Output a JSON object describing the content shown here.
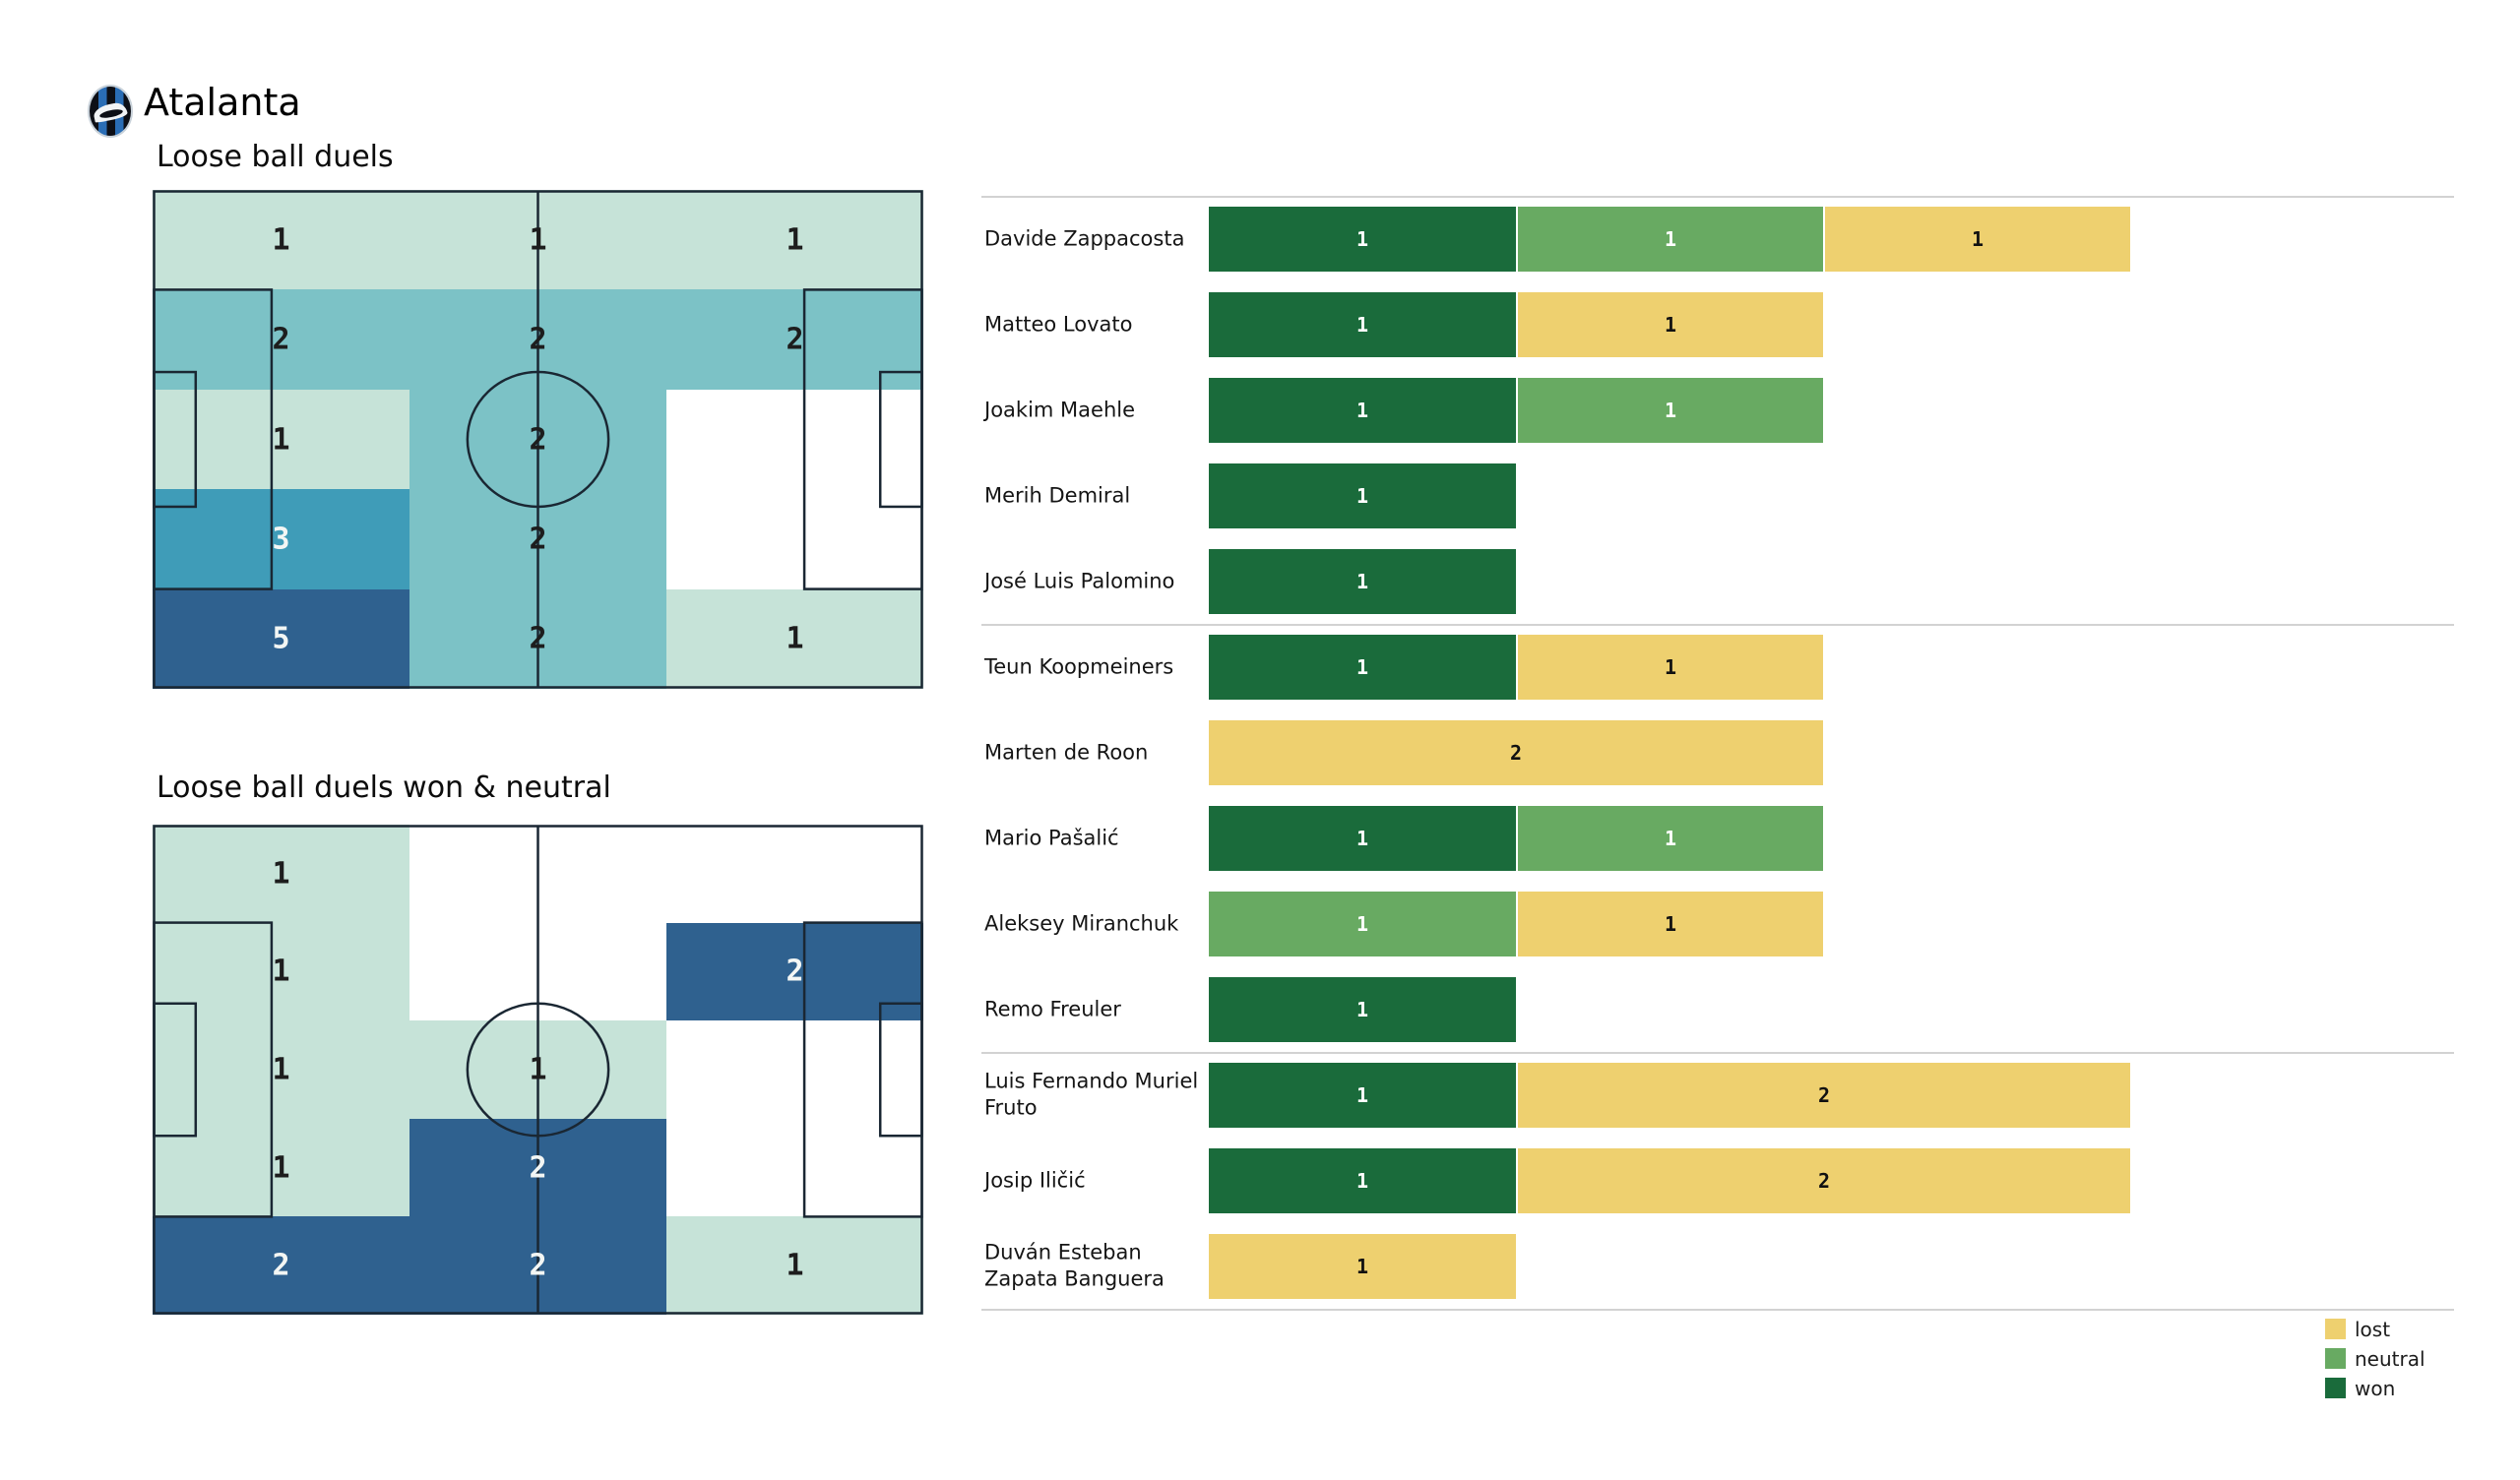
{
  "header": {
    "team": "Atalanta"
  },
  "chart_data": [
    {
      "type": "heatmap",
      "subtype": "football-pitch-zones",
      "title": "Loose ball duels",
      "rows": 5,
      "cols": 3,
      "values": [
        [
          1,
          1,
          1
        ],
        [
          2,
          2,
          2
        ],
        [
          1,
          2,
          0
        ],
        [
          3,
          2,
          0
        ],
        [
          5,
          2,
          1
        ]
      ],
      "color_scale": {
        "0": "#ffffff",
        "1": "#c6e3d8",
        "2": "#7cc2c6",
        "3": "#3f9cb8",
        "5": "#2f618f"
      },
      "white_text_min": 3
    },
    {
      "type": "heatmap",
      "subtype": "football-pitch-zones",
      "title": "Loose ball duels won & neutral",
      "rows": 5,
      "cols": 3,
      "values": [
        [
          1,
          0,
          0
        ],
        [
          1,
          0,
          2
        ],
        [
          1,
          1,
          0
        ],
        [
          1,
          2,
          0
        ],
        [
          2,
          2,
          1
        ]
      ],
      "color_scale": {
        "0": "#ffffff",
        "1": "#c6e3d8",
        "2": "#2f618f"
      },
      "white_text_min": 2
    },
    {
      "type": "bar",
      "stacked": true,
      "orientation": "horizontal",
      "categories": [
        "Davide Zappacosta",
        "Matteo Lovato",
        "Joakim Maehle",
        "Merih Demiral",
        "José Luis Palomino",
        "Teun Koopmeiners",
        "Marten de Roon",
        "Mario Pašalić",
        "Aleksey Miranchuk",
        "Remo Freuler",
        "Luis Fernando Muriel Fruto",
        "Josip Iličić",
        "Duván Esteban Zapata Banguera"
      ],
      "series": [
        {
          "name": "won",
          "color": "#1a6b3b",
          "label_color": "#ffffff",
          "values": [
            1,
            1,
            1,
            1,
            1,
            1,
            0,
            1,
            0,
            1,
            1,
            1,
            0
          ]
        },
        {
          "name": "neutral",
          "color": "#68aa62",
          "label_color": "#ffffff",
          "values": [
            1,
            0,
            1,
            0,
            0,
            0,
            0,
            1,
            1,
            0,
            0,
            0,
            0
          ]
        },
        {
          "name": "lost",
          "color": "#eed06f",
          "label_color": "#111111",
          "values": [
            1,
            1,
            0,
            0,
            0,
            1,
            2,
            0,
            1,
            0,
            2,
            2,
            1
          ]
        }
      ],
      "group_separators_after": [
        4,
        9
      ],
      "legend": {
        "position": "bottom-right",
        "entries": [
          {
            "label": "lost",
            "color": "#eed06f"
          },
          {
            "label": "neutral",
            "color": "#68aa62"
          },
          {
            "label": "won",
            "color": "#1a6b3b"
          }
        ]
      }
    }
  ]
}
